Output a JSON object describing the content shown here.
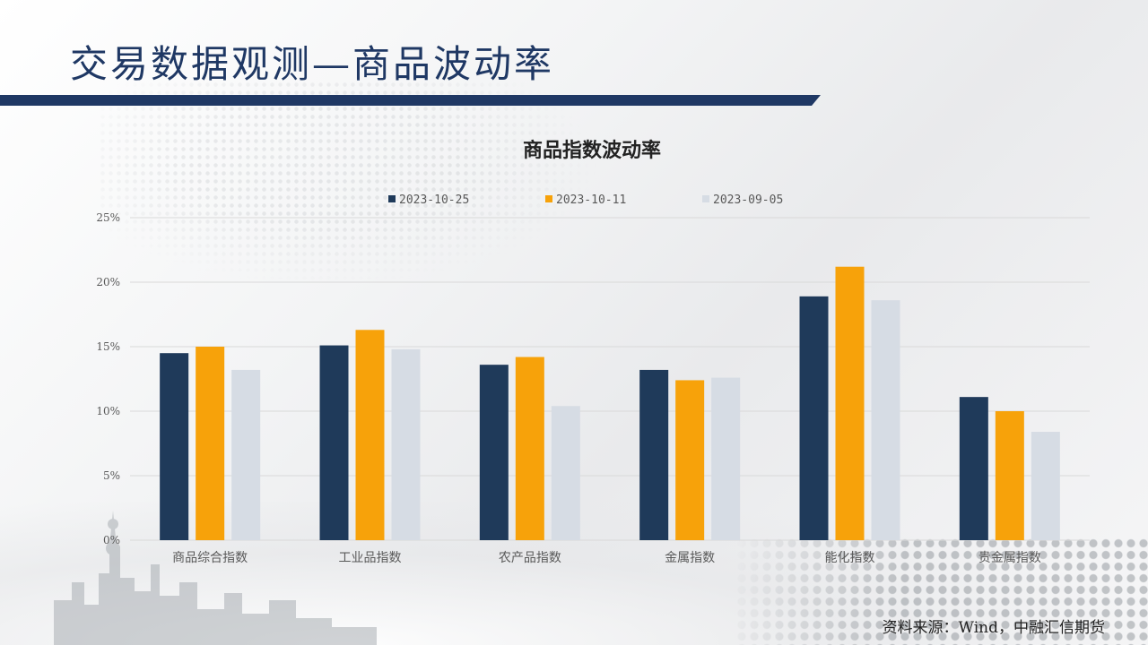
{
  "header": {
    "title": "交易数据观测—商品波动率"
  },
  "footer": {
    "source": "资料来源：Wind，中融汇信期货"
  },
  "colors": {
    "title_text": "#1f3864",
    "title_bar": "#1f3864",
    "series_1": "#1f3a5a",
    "series_2": "#f7a20a",
    "series_3": "#d6dce4",
    "gridline": "#d9d9d9",
    "axis_text": "#595959"
  },
  "chart_data": {
    "type": "bar",
    "title": "商品指数波动率",
    "xlabel": "",
    "ylabel": "",
    "categories": [
      "商品综合指数",
      "工业品指数",
      "农产品指数",
      "金属指数",
      "能化指数",
      "贵金属指数"
    ],
    "series": [
      {
        "name": "2023-10-25",
        "values": [
          14.5,
          15.1,
          13.6,
          13.2,
          18.9,
          11.1
        ]
      },
      {
        "name": "2023-10-11",
        "values": [
          15.0,
          16.3,
          14.2,
          12.4,
          21.2,
          10.0
        ]
      },
      {
        "name": "2023-09-05",
        "values": [
          13.2,
          14.8,
          10.4,
          12.6,
          18.6,
          8.4
        ]
      }
    ],
    "ylim": [
      0,
      25
    ],
    "yticks": [
      0,
      5,
      10,
      15,
      20,
      25
    ],
    "ytick_labels": [
      "0%",
      "5%",
      "10%",
      "15%",
      "20%",
      "25%"
    ],
    "grid": true,
    "legend_position": "top-center"
  }
}
